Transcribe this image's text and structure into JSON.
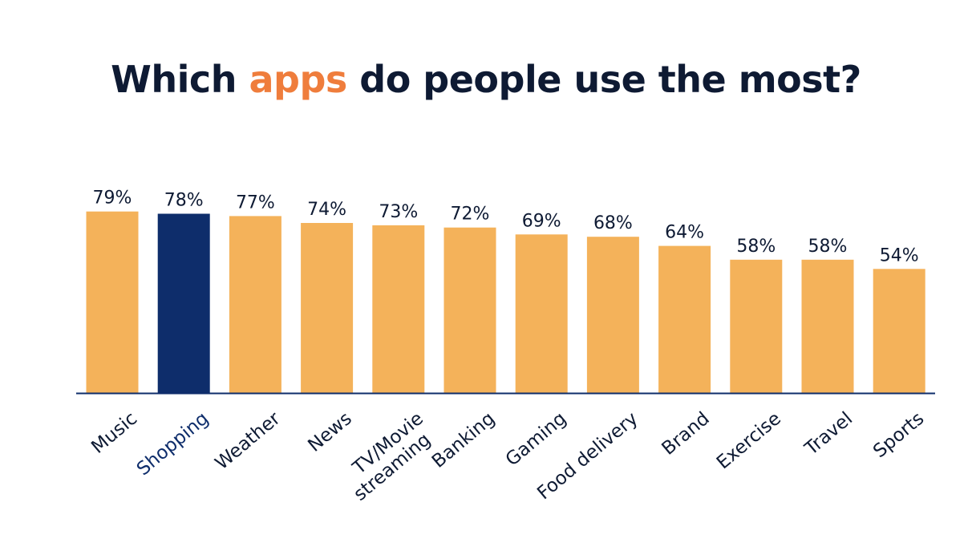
{
  "title": {
    "before": "Which ",
    "accent": "apps",
    "after": " do people use the most?"
  },
  "colors": {
    "bar": "#f4b25a",
    "highlight": "#0e2d6b",
    "text": "#0e1a33",
    "accent": "#ef7d3c",
    "axis": "#0e2d6b"
  },
  "chart_data": {
    "type": "bar",
    "categories": [
      "Music",
      "Shopping",
      "Weather",
      "News",
      "TV/Movie streaming",
      "Banking",
      "Gaming",
      "Food delivery",
      "Brand",
      "Exercise",
      "Travel",
      "Sports"
    ],
    "category_lines": [
      [
        "Music"
      ],
      [
        "Shopping"
      ],
      [
        "Weather"
      ],
      [
        "News"
      ],
      [
        "TV/Movie",
        "streaming"
      ],
      [
        "Banking"
      ],
      [
        "Gaming"
      ],
      [
        "Food delivery"
      ],
      [
        "Brand"
      ],
      [
        "Exercise"
      ],
      [
        "Travel"
      ],
      [
        "Sports"
      ]
    ],
    "values": [
      79,
      78,
      77,
      74,
      73,
      72,
      69,
      68,
      64,
      58,
      58,
      54
    ],
    "value_labels": [
      "79%",
      "78%",
      "77%",
      "74%",
      "73%",
      "72%",
      "69%",
      "68%",
      "64%",
      "58%",
      "58%",
      "54%"
    ],
    "highlight_category": "Shopping",
    "ylim": [
      0,
      100
    ],
    "grid": false,
    "legend": "none"
  }
}
